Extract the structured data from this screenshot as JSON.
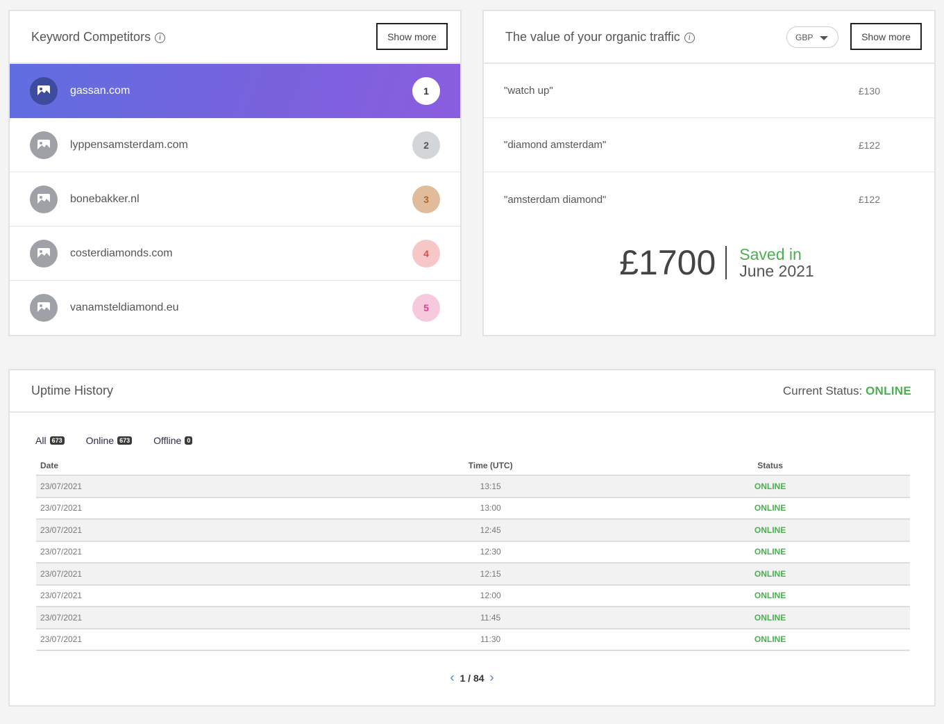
{
  "competitors": {
    "title": "Keyword Competitors",
    "show_more": "Show more",
    "items": [
      {
        "domain": "gassan.com",
        "rank": "1"
      },
      {
        "domain": "lyppensamsterdam.com",
        "rank": "2"
      },
      {
        "domain": "bonebakker.nl",
        "rank": "3"
      },
      {
        "domain": "costerdiamonds.com",
        "rank": "4"
      },
      {
        "domain": "vanamsteldiamond.eu",
        "rank": "5"
      }
    ]
  },
  "traffic": {
    "title": "The value of your organic traffic",
    "currency": "GBP",
    "show_more": "Show more",
    "keywords": [
      {
        "keyword": "\"watch up\"",
        "value": "£130"
      },
      {
        "keyword": "\"diamond amsterdam\"",
        "value": "£122"
      },
      {
        "keyword": "\"amsterdam diamond\"",
        "value": "£122"
      }
    ],
    "saved_amount": "£1700",
    "saved_label": "Saved in",
    "saved_date": "June 2021"
  },
  "uptime": {
    "title": "Uptime History",
    "status_label": "Current Status:",
    "status_value": "ONLINE",
    "filters": [
      {
        "label": "All",
        "count": "673"
      },
      {
        "label": "Online",
        "count": "673"
      },
      {
        "label": "Offline",
        "count": "0"
      }
    ],
    "columns": {
      "date": "Date",
      "time": "Time (UTC)",
      "status": "Status"
    },
    "rows": [
      {
        "date": "23/07/2021",
        "time": "13:15",
        "status": "ONLINE"
      },
      {
        "date": "23/07/2021",
        "time": "13:00",
        "status": "ONLINE"
      },
      {
        "date": "23/07/2021",
        "time": "12:45",
        "status": "ONLINE"
      },
      {
        "date": "23/07/2021",
        "time": "12:30",
        "status": "ONLINE"
      },
      {
        "date": "23/07/2021",
        "time": "12:15",
        "status": "ONLINE"
      },
      {
        "date": "23/07/2021",
        "time": "12:00",
        "status": "ONLINE"
      },
      {
        "date": "23/07/2021",
        "time": "11:45",
        "status": "ONLINE"
      },
      {
        "date": "23/07/2021",
        "time": "11:30",
        "status": "ONLINE"
      }
    ],
    "pagination": "1 / 84"
  }
}
